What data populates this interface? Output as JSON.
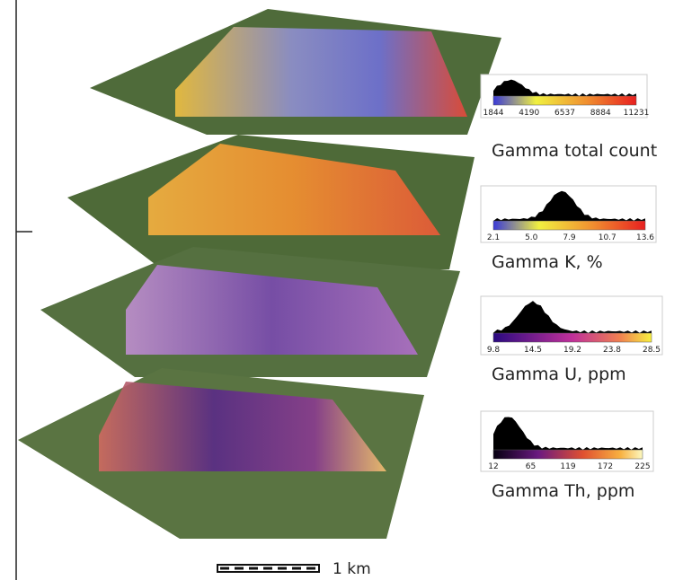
{
  "legends": [
    {
      "title": "Gamma total count",
      "ticks": [
        "1844",
        "4190",
        "6537",
        "8884",
        "11231"
      ]
    },
    {
      "title": "Gamma K, %",
      "ticks": [
        "2.1",
        "5.0",
        "7.9",
        "10.7",
        "13.6"
      ]
    },
    {
      "title": "Gamma U, ppm",
      "ticks": [
        "9.8",
        "14.5",
        "19.2",
        "23.8",
        "28.5"
      ]
    },
    {
      "title": "Gamma Th, ppm",
      "ticks": [
        "12",
        "65",
        "119",
        "172",
        "225"
      ]
    }
  ],
  "scale_bar": "1 km"
}
